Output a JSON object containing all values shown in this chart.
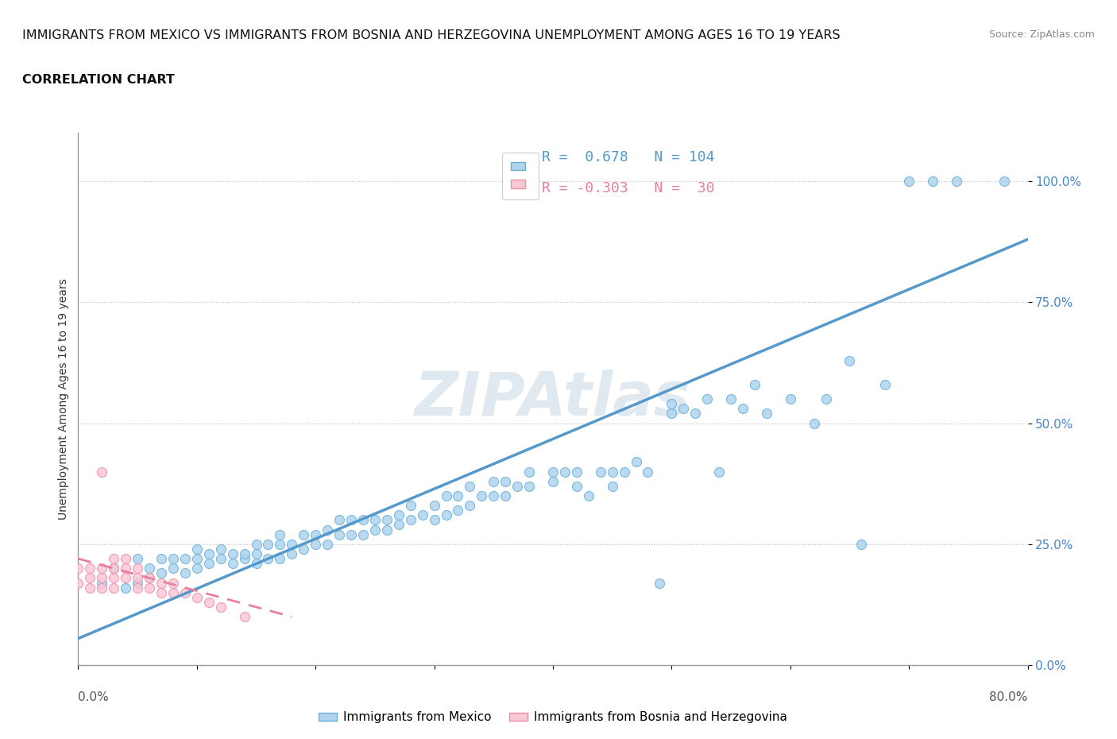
{
  "title_line1": "IMMIGRANTS FROM MEXICO VS IMMIGRANTS FROM BOSNIA AND HERZEGOVINA UNEMPLOYMENT AMONG AGES 16 TO 19 YEARS",
  "title_line2": "CORRELATION CHART",
  "source": "Source: ZipAtlas.com",
  "ylabel": "Unemployment Among Ages 16 to 19 years",
  "xlim": [
    0.0,
    0.8
  ],
  "ylim": [
    0.0,
    1.1
  ],
  "xticks": [
    0.0,
    0.1,
    0.2,
    0.3,
    0.4,
    0.5,
    0.6,
    0.7,
    0.8
  ],
  "ytick_positions": [
    0.0,
    0.25,
    0.5,
    0.75,
    1.0
  ],
  "yticklabels_right": [
    "0.0%",
    "25.0%",
    "50.0%",
    "75.0%",
    "100.0%"
  ],
  "R_mexico": 0.678,
  "N_mexico": 104,
  "R_bosnia": -0.303,
  "N_bosnia": 30,
  "color_mexico_fill": "#aed4f0",
  "color_mexico_edge": "#6aafd6",
  "color_bosnia_fill": "#f9c8d5",
  "color_bosnia_edge": "#f08faa",
  "color_mexico_line": "#5599cc",
  "color_bosnia_line": "#e87fa0",
  "background_color": "#ffffff",
  "mexico_scatter": [
    [
      0.02,
      0.17
    ],
    [
      0.03,
      0.2
    ],
    [
      0.04,
      0.16
    ],
    [
      0.05,
      0.17
    ],
    [
      0.05,
      0.22
    ],
    [
      0.06,
      0.18
    ],
    [
      0.06,
      0.2
    ],
    [
      0.07,
      0.19
    ],
    [
      0.07,
      0.22
    ],
    [
      0.08,
      0.2
    ],
    [
      0.08,
      0.22
    ],
    [
      0.09,
      0.19
    ],
    [
      0.09,
      0.22
    ],
    [
      0.1,
      0.2
    ],
    [
      0.1,
      0.22
    ],
    [
      0.1,
      0.24
    ],
    [
      0.11,
      0.21
    ],
    [
      0.11,
      0.23
    ],
    [
      0.12,
      0.22
    ],
    [
      0.12,
      0.24
    ],
    [
      0.13,
      0.21
    ],
    [
      0.13,
      0.23
    ],
    [
      0.14,
      0.22
    ],
    [
      0.14,
      0.23
    ],
    [
      0.15,
      0.21
    ],
    [
      0.15,
      0.23
    ],
    [
      0.15,
      0.25
    ],
    [
      0.16,
      0.22
    ],
    [
      0.16,
      0.25
    ],
    [
      0.17,
      0.22
    ],
    [
      0.17,
      0.25
    ],
    [
      0.17,
      0.27
    ],
    [
      0.18,
      0.23
    ],
    [
      0.18,
      0.25
    ],
    [
      0.19,
      0.24
    ],
    [
      0.19,
      0.27
    ],
    [
      0.2,
      0.25
    ],
    [
      0.2,
      0.27
    ],
    [
      0.21,
      0.25
    ],
    [
      0.21,
      0.28
    ],
    [
      0.22,
      0.27
    ],
    [
      0.22,
      0.3
    ],
    [
      0.23,
      0.27
    ],
    [
      0.23,
      0.3
    ],
    [
      0.24,
      0.27
    ],
    [
      0.24,
      0.3
    ],
    [
      0.25,
      0.28
    ],
    [
      0.25,
      0.3
    ],
    [
      0.26,
      0.28
    ],
    [
      0.26,
      0.3
    ],
    [
      0.27,
      0.29
    ],
    [
      0.27,
      0.31
    ],
    [
      0.28,
      0.3
    ],
    [
      0.28,
      0.33
    ],
    [
      0.29,
      0.31
    ],
    [
      0.3,
      0.3
    ],
    [
      0.3,
      0.33
    ],
    [
      0.31,
      0.31
    ],
    [
      0.31,
      0.35
    ],
    [
      0.32,
      0.32
    ],
    [
      0.32,
      0.35
    ],
    [
      0.33,
      0.33
    ],
    [
      0.33,
      0.37
    ],
    [
      0.34,
      0.35
    ],
    [
      0.35,
      0.35
    ],
    [
      0.35,
      0.38
    ],
    [
      0.36,
      0.35
    ],
    [
      0.36,
      0.38
    ],
    [
      0.37,
      0.37
    ],
    [
      0.38,
      0.37
    ],
    [
      0.38,
      0.4
    ],
    [
      0.4,
      0.38
    ],
    [
      0.4,
      0.4
    ],
    [
      0.41,
      0.4
    ],
    [
      0.42,
      0.37
    ],
    [
      0.42,
      0.4
    ],
    [
      0.43,
      0.35
    ],
    [
      0.44,
      0.4
    ],
    [
      0.45,
      0.37
    ],
    [
      0.45,
      0.4
    ],
    [
      0.46,
      0.4
    ],
    [
      0.47,
      0.42
    ],
    [
      0.48,
      0.4
    ],
    [
      0.49,
      0.17
    ],
    [
      0.5,
      0.52
    ],
    [
      0.5,
      0.54
    ],
    [
      0.51,
      0.53
    ],
    [
      0.52,
      0.52
    ],
    [
      0.53,
      0.55
    ],
    [
      0.54,
      0.4
    ],
    [
      0.55,
      0.55
    ],
    [
      0.56,
      0.53
    ],
    [
      0.57,
      0.58
    ],
    [
      0.58,
      0.52
    ],
    [
      0.6,
      0.55
    ],
    [
      0.62,
      0.5
    ],
    [
      0.63,
      0.55
    ],
    [
      0.65,
      0.63
    ],
    [
      0.66,
      0.25
    ],
    [
      0.68,
      0.58
    ],
    [
      0.7,
      1.0
    ],
    [
      0.72,
      1.0
    ],
    [
      0.74,
      1.0
    ],
    [
      0.78,
      1.0
    ]
  ],
  "bosnia_scatter": [
    [
      0.0,
      0.2
    ],
    [
      0.0,
      0.17
    ],
    [
      0.01,
      0.18
    ],
    [
      0.01,
      0.16
    ],
    [
      0.01,
      0.2
    ],
    [
      0.02,
      0.4
    ],
    [
      0.02,
      0.18
    ],
    [
      0.02,
      0.16
    ],
    [
      0.02,
      0.2
    ],
    [
      0.03,
      0.18
    ],
    [
      0.03,
      0.16
    ],
    [
      0.03,
      0.2
    ],
    [
      0.03,
      0.22
    ],
    [
      0.04,
      0.18
    ],
    [
      0.04,
      0.2
    ],
    [
      0.04,
      0.22
    ],
    [
      0.05,
      0.16
    ],
    [
      0.05,
      0.18
    ],
    [
      0.05,
      0.2
    ],
    [
      0.06,
      0.16
    ],
    [
      0.06,
      0.18
    ],
    [
      0.07,
      0.15
    ],
    [
      0.07,
      0.17
    ],
    [
      0.08,
      0.15
    ],
    [
      0.08,
      0.17
    ],
    [
      0.09,
      0.15
    ],
    [
      0.1,
      0.14
    ],
    [
      0.11,
      0.13
    ],
    [
      0.12,
      0.12
    ],
    [
      0.14,
      0.1
    ]
  ],
  "mexico_line_x": [
    0.0,
    0.8
  ],
  "mexico_line_y": [
    0.055,
    0.88
  ],
  "bosnia_line_x": [
    0.0,
    0.18
  ],
  "bosnia_line_y": [
    0.22,
    0.1
  ]
}
